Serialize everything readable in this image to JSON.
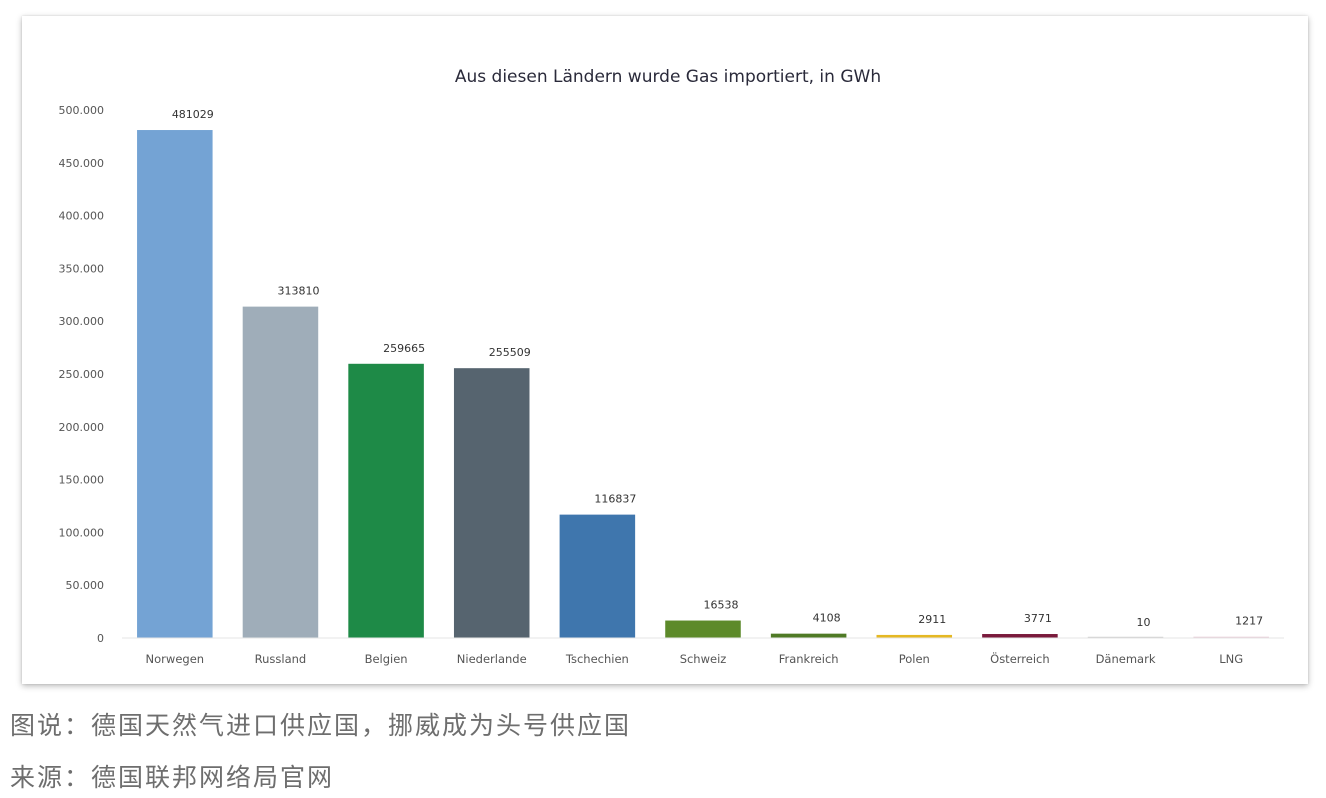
{
  "chart_data": {
    "type": "bar",
    "title": "Aus diesen Ländern wurde Gas importiert, in GWh",
    "xlabel": "",
    "ylabel": "",
    "ylim": [
      0,
      500000
    ],
    "y_ticks": [
      0,
      50000,
      100000,
      150000,
      200000,
      250000,
      300000,
      350000,
      400000,
      450000,
      500000
    ],
    "y_tick_labels": [
      "0",
      "50.000",
      "100.000",
      "150.000",
      "200.000",
      "250.000",
      "300.000",
      "350.000",
      "400.000",
      "450.000",
      "500.000"
    ],
    "grid": false,
    "legend": "none",
    "categories": [
      "Norwegen",
      "Russland",
      "Belgien",
      "Niederlande",
      "Tschechien",
      "Schweiz",
      "Frankreich",
      "Polen",
      "Österreich",
      "Dänemark",
      "LNG"
    ],
    "values": [
      481029,
      313810,
      259665,
      255509,
      116837,
      16538,
      4108,
      2911,
      3771,
      10,
      1217
    ],
    "value_labels": [
      "481029",
      "313810",
      "259665",
      "255509",
      "116837",
      "16538",
      "4108",
      "2911",
      "3771",
      "10",
      "1217"
    ],
    "colors": [
      "#74a3d4",
      "#9fadb9",
      "#1e8a47",
      "#56646f",
      "#3f76ad",
      "#5d8a2a",
      "#4f7a25",
      "#e5b823",
      "#7a1a3c",
      "#c9c9c9",
      "#e8c9d6"
    ]
  },
  "captions": {
    "figure_note": "图说：德国天然气进口供应国，挪威成为头号供应国",
    "source": "来源：德国联邦网络局官网"
  }
}
